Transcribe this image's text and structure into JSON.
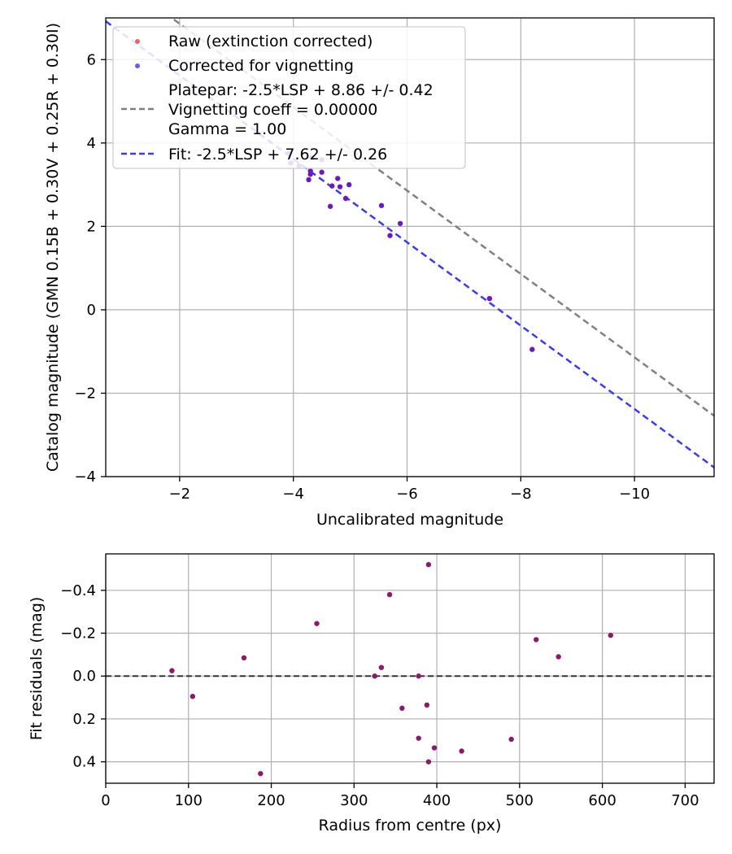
{
  "chart_data": [
    {
      "type": "scatter",
      "xlabel": "Uncalibrated magnitude",
      "ylabel": "Catalog magnitude (GMN 0.15B + 0.30V + 0.25R + 0.30I)",
      "xlim": [
        -0.7,
        -11.4
      ],
      "ylim": [
        7.0,
        -4.0
      ],
      "xticks": [
        -2,
        -4,
        -6,
        -8,
        -10
      ],
      "yticks": [
        -4,
        -2,
        0,
        2,
        4,
        6
      ],
      "xtick_labels": [
        "−2",
        "−4",
        "−6",
        "−8",
        "−10"
      ],
      "ytick_labels": [
        "−4",
        "−2",
        "0",
        "2",
        "4",
        "6"
      ],
      "grid": true,
      "legend_position": "top-left",
      "legend": [
        {
          "label": "Raw (extinction corrected)",
          "marker": "dot",
          "color": "#f06060"
        },
        {
          "label": "Corrected for vignetting",
          "marker": "dot",
          "color": "#6060f0"
        },
        {
          "label": "Platepar: -2.5*LSP + 8.86 +/- 0.42",
          "marker": "none"
        },
        {
          "label": "Vignetting coeff = 0.00000",
          "marker": "dash",
          "color": "#808080"
        },
        {
          "label": "Gamma = 1.00",
          "marker": "none"
        },
        {
          "label": "Fit: -2.5*LSP + 7.62 +/- 0.26",
          "marker": "dash",
          "color": "#3b3bed"
        }
      ],
      "lines": [
        {
          "name": "Platepar",
          "slope": 1,
          "intercept": 8.86,
          "color": "#808080"
        },
        {
          "name": "Fit",
          "slope": 1,
          "intercept": 7.62,
          "color": "#3b3bed"
        }
      ],
      "series": [
        {
          "name": "Stars (raw and vignetting-corrected, overlapping)",
          "color": "#6a1bbf",
          "points": [
            [
              -8.2,
              -0.95
            ],
            [
              -7.45,
              0.27
            ],
            [
              -5.88,
              2.07
            ],
            [
              -5.7,
              1.78
            ],
            [
              -5.55,
              2.5
            ],
            [
              -4.98,
              3.0
            ],
            [
              -4.92,
              2.67
            ],
            [
              -4.82,
              2.95
            ],
            [
              -4.78,
              3.15
            ],
            [
              -4.68,
              2.97
            ],
            [
              -4.65,
              2.48
            ],
            [
              -4.5,
              3.3
            ],
            [
              -4.5,
              3.6
            ],
            [
              -4.32,
              3.65
            ],
            [
              -4.3,
              3.33
            ],
            [
              -4.3,
              3.25
            ],
            [
              -4.27,
              3.12
            ],
            [
              -4.1,
              3.45
            ],
            [
              -3.95,
              3.52
            ],
            [
              -3.92,
              3.75
            ]
          ]
        }
      ]
    },
    {
      "type": "scatter",
      "xlabel": "Radius from centre (px)",
      "ylabel": "Fit residuals (mag)",
      "xlim": [
        0,
        735
      ],
      "ylim": [
        -0.57,
        0.5
      ],
      "xticks": [
        0,
        100,
        200,
        300,
        400,
        500,
        600,
        700
      ],
      "yticks": [
        -0.4,
        -0.2,
        0.0,
        0.2,
        0.4
      ],
      "xtick_labels": [
        "0",
        "100",
        "200",
        "300",
        "400",
        "500",
        "600",
        "700"
      ],
      "ytick_labels": [
        "−0.4",
        "−0.2",
        "0.0",
        "0.2",
        "0.4"
      ],
      "grid": true,
      "reference_line": {
        "y": 0.0,
        "style": "dashed",
        "color": "#333333"
      },
      "series": [
        {
          "name": "Residuals",
          "color": "#8b1a6b",
          "points": [
            [
              80,
              -0.025
            ],
            [
              105,
              0.095
            ],
            [
              167,
              -0.085
            ],
            [
              187,
              0.455
            ],
            [
              255,
              -0.245
            ],
            [
              325,
              0.0
            ],
            [
              333,
              -0.04
            ],
            [
              343,
              -0.38
            ],
            [
              358,
              0.15
            ],
            [
              378,
              0.29
            ],
            [
              378,
              0.0
            ],
            [
              388,
              0.135
            ],
            [
              390,
              0.4
            ],
            [
              390,
              -0.52
            ],
            [
              397,
              0.335
            ],
            [
              430,
              0.35
            ],
            [
              490,
              0.295
            ],
            [
              520,
              -0.17
            ],
            [
              547,
              -0.09
            ],
            [
              610,
              -0.19
            ]
          ]
        }
      ]
    }
  ]
}
